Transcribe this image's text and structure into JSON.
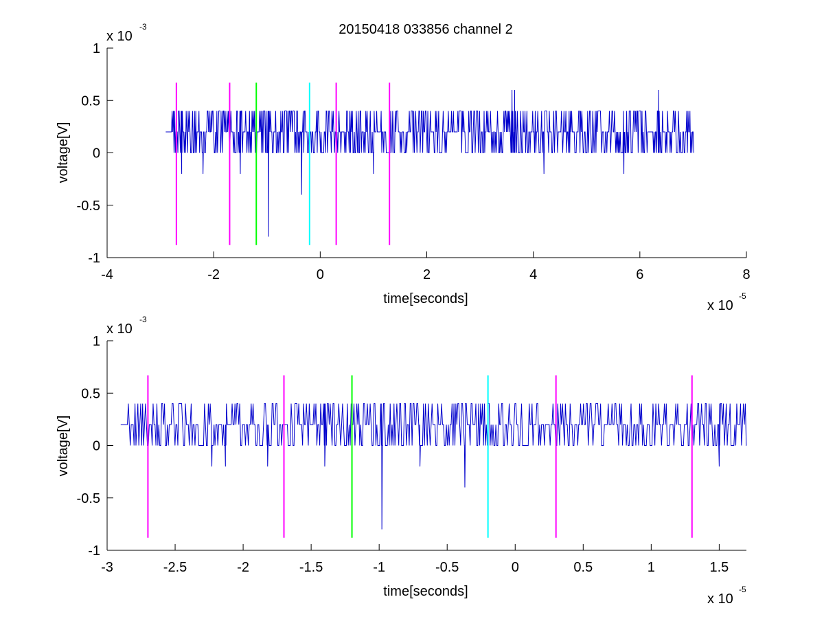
{
  "figure": {
    "title": "20150418 033856 channel 2",
    "background": "#ffffff"
  },
  "colors": {
    "signal": "#0000cc",
    "magenta": "#ff00ff",
    "green": "#00ff00",
    "cyan": "#00ffff",
    "axis": "#000000"
  },
  "chart_data": [
    {
      "type": "line",
      "title": "20150418 033856 channel 2",
      "xlabel": "time[seconds]",
      "ylabel": "voltage[V]",
      "x_exponent_label": "x 10",
      "x_exponent": "-5",
      "y_exponent_label": "x 10",
      "y_exponent": "-3",
      "xlim": [
        -4,
        8
      ],
      "ylim": [
        -1,
        1
      ],
      "xticks": [
        -4,
        -2,
        0,
        2,
        4,
        6,
        8
      ],
      "xtick_labels": [
        "-4",
        "-2",
        "0",
        "2",
        "4",
        "6",
        "8"
      ],
      "yticks": [
        -1,
        -0.5,
        0,
        0.5,
        1
      ],
      "ytick_labels": [
        "-1",
        "-0.5",
        "0",
        "0.5",
        "1"
      ],
      "grid": false,
      "series": [
        {
          "kind": "noise",
          "x_range": [
            -2.9,
            7.0
          ],
          "baseline": 0.2,
          "levels": [
            -0.2,
            0,
            0.2,
            0.4
          ],
          "spikes": [
            {
              "x": -2.6,
              "y": -0.2
            },
            {
              "x": -2.2,
              "y": -0.2
            },
            {
              "x": -1.5,
              "y": -0.2
            },
            {
              "x": -0.97,
              "y": -0.8
            },
            {
              "x": -0.35,
              "y": -0.4
            },
            {
              "x": 1.0,
              "y": -0.2
            },
            {
              "x": 3.6,
              "y": 0.6
            },
            {
              "x": 3.65,
              "y": 0.6
            },
            {
              "x": 6.35,
              "y": 0.6
            },
            {
              "x": 5.7,
              "y": -0.2
            },
            {
              "x": 4.2,
              "y": -0.2
            }
          ]
        }
      ],
      "markers": [
        {
          "x": -2.7,
          "y1": -0.88,
          "y2": 0.67,
          "color": "magenta"
        },
        {
          "x": -1.7,
          "y1": -0.88,
          "y2": 0.67,
          "color": "magenta"
        },
        {
          "x": -1.2,
          "y1": -0.88,
          "y2": 0.67,
          "color": "green"
        },
        {
          "x": -0.2,
          "y1": -0.88,
          "y2": 0.67,
          "color": "cyan"
        },
        {
          "x": 0.3,
          "y1": -0.88,
          "y2": 0.67,
          "color": "magenta"
        },
        {
          "x": 1.3,
          "y1": -0.88,
          "y2": 0.67,
          "color": "magenta"
        }
      ]
    },
    {
      "type": "line",
      "title": "",
      "xlabel": "time[seconds]",
      "ylabel": "voltage[V]",
      "x_exponent_label": "x 10",
      "x_exponent": "-5",
      "y_exponent_label": "x 10",
      "y_exponent": "-3",
      "xlim": [
        -3.0,
        1.7
      ],
      "ylim": [
        -1,
        1
      ],
      "xticks": [
        -3,
        -2.5,
        -2,
        -1.5,
        -1,
        -0.5,
        0,
        0.5,
        1,
        1.5
      ],
      "xtick_labels": [
        "-3",
        "-2.5",
        "-2",
        "-1.5",
        "-1",
        "-0.5",
        "0",
        "0.5",
        "1",
        "1.5"
      ],
      "yticks": [
        -1,
        -0.5,
        0,
        0.5,
        1
      ],
      "ytick_labels": [
        "-1",
        "-0.5",
        "0",
        "0.5",
        "1"
      ],
      "grid": false,
      "series": [
        {
          "kind": "noise",
          "x_range": [
            -2.9,
            1.7
          ],
          "baseline": 0.2,
          "levels": [
            -0.2,
            0,
            0.2,
            0.4
          ],
          "spikes": [
            {
              "x": -2.23,
              "y": -0.2
            },
            {
              "x": -2.13,
              "y": -0.2
            },
            {
              "x": -1.82,
              "y": -0.2
            },
            {
              "x": -0.98,
              "y": -0.8
            },
            {
              "x": -0.37,
              "y": -0.4
            },
            {
              "x": 1.5,
              "y": -0.2
            },
            {
              "x": -1.4,
              "y": -0.2
            },
            {
              "x": -0.7,
              "y": -0.2
            }
          ]
        }
      ],
      "markers": [
        {
          "x": -2.7,
          "y1": -0.88,
          "y2": 0.67,
          "color": "magenta"
        },
        {
          "x": -1.7,
          "y1": -0.88,
          "y2": 0.67,
          "color": "magenta"
        },
        {
          "x": -1.2,
          "y1": -0.88,
          "y2": 0.67,
          "color": "green"
        },
        {
          "x": -0.2,
          "y1": -0.88,
          "y2": 0.67,
          "color": "cyan"
        },
        {
          "x": 0.3,
          "y1": -0.88,
          "y2": 0.67,
          "color": "magenta"
        },
        {
          "x": 1.3,
          "y1": -0.88,
          "y2": 0.67,
          "color": "magenta"
        }
      ]
    }
  ]
}
